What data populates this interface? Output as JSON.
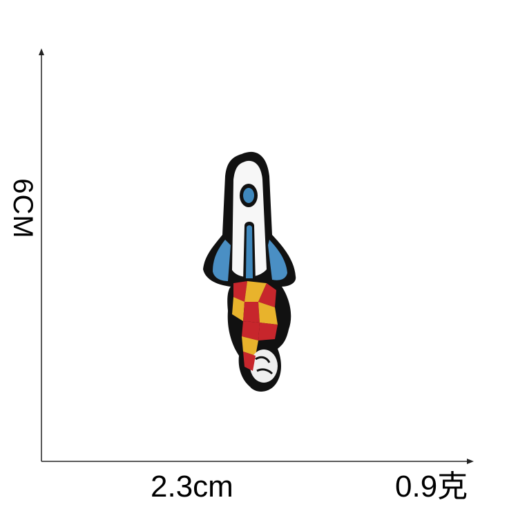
{
  "dimensions": {
    "height": "6CM",
    "width": "2.3cm",
    "weight": "0.9克"
  },
  "patch": {
    "icon": "rocket-icon",
    "colors": {
      "border": "#111111",
      "body": "#f7f7f7",
      "window": "#3f88bd",
      "fin": "#4a8fc4",
      "flame_red": "#c7262c",
      "flame_yellow": "#e8b32c",
      "smoke": "#efefef"
    }
  }
}
